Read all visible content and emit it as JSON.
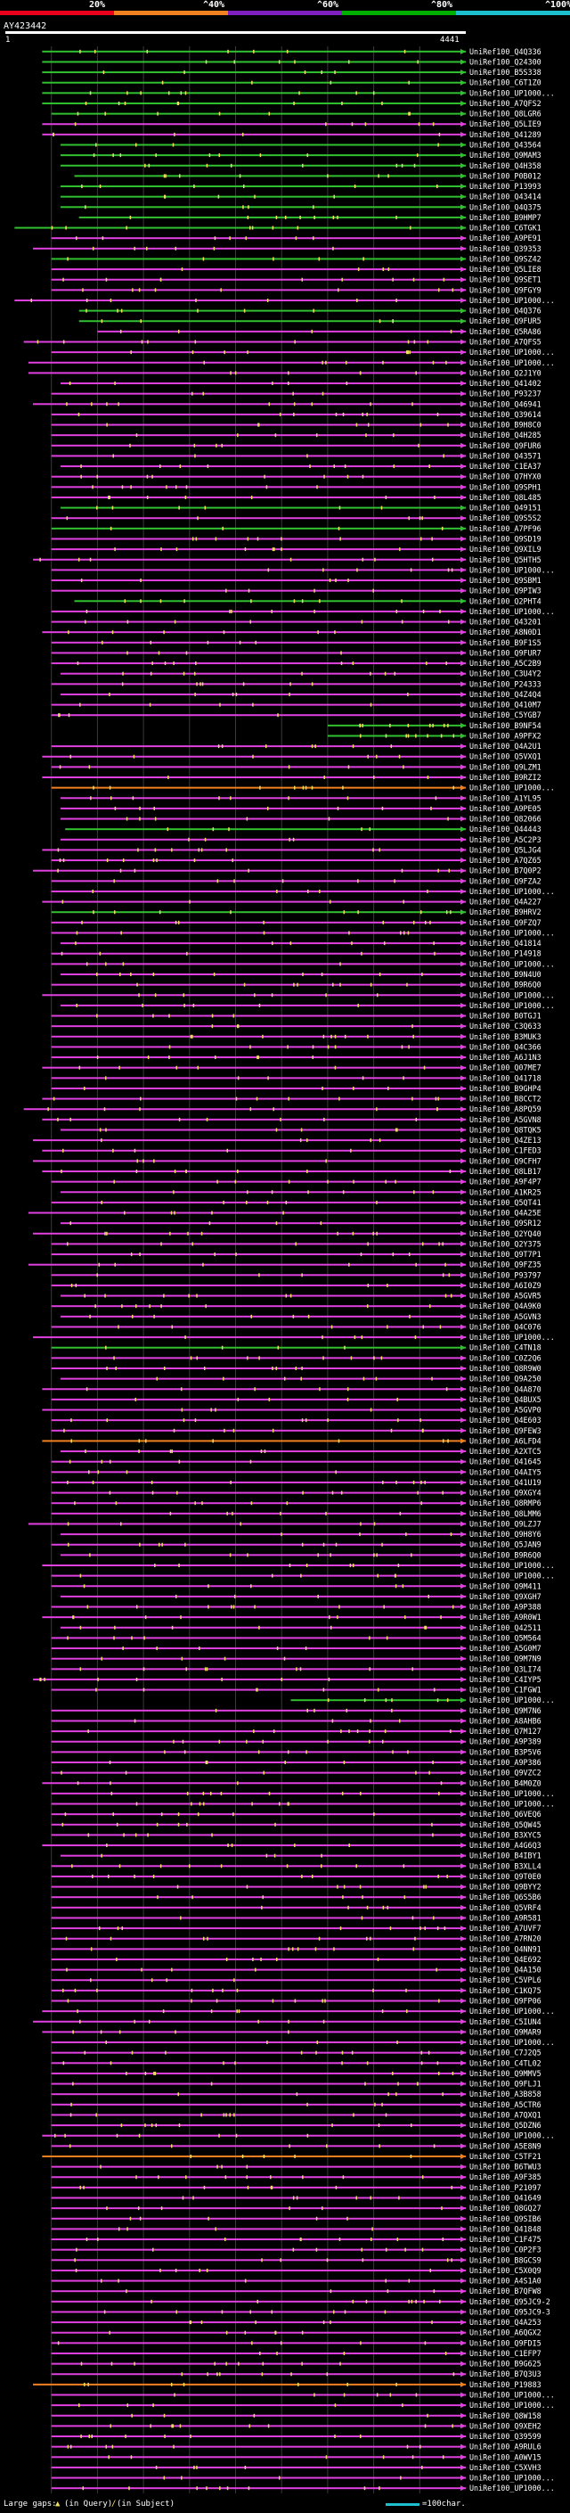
{
  "header": {
    "title": "AY423442",
    "query_start": "1",
    "query_end": "4441",
    "scale": [
      {
        "label": "20%",
        "color": "#e8001c"
      },
      {
        "label": "^40%",
        "color": "#f08020"
      },
      {
        "label": "^60%",
        "color": "#8020c0"
      },
      {
        "label": "^80%",
        "color": "#00b000"
      },
      {
        "label": "^100%",
        "color": "#1ec0d0"
      }
    ]
  },
  "colors": {
    "magenta": "#e040e0",
    "green": "#30c030",
    "orange": "#f08020",
    "red": "#e8001c",
    "yellow": "#f0e060",
    "grid": "#3a3a3a"
  },
  "hits": [
    {
      "label": "UniRef100_Q4Q336",
      "c": "g",
      "s": 0.08
    },
    {
      "label": "UniRef100_Q24300",
      "c": "g",
      "s": 0.08
    },
    {
      "label": "UniRef100_B5S338",
      "c": "g",
      "s": 0.08
    },
    {
      "label": "UniRef100_C6T1Z0",
      "c": "g",
      "s": 0.08
    },
    {
      "label": "UniRef100_UP1000...",
      "c": "g",
      "s": 0.08
    },
    {
      "label": "UniRef100_A7QFS2",
      "c": "g",
      "s": 0.08
    },
    {
      "label": "UniRef100_Q8LGR6",
      "c": "g",
      "s": 0.1
    },
    {
      "label": "UniRef100_Q5LIE9",
      "c": "m",
      "s": 0.08
    },
    {
      "label": "UniRef100_Q41289",
      "c": "m",
      "s": 0.08
    },
    {
      "label": "UniRef100_Q43564",
      "c": "g",
      "s": 0.12
    },
    {
      "label": "UniRef100_Q9MAM3",
      "c": "g",
      "s": 0.12
    },
    {
      "label": "UniRef100_Q4H358",
      "c": "g",
      "s": 0.12
    },
    {
      "label": "UniRef100_P0B012",
      "c": "g",
      "s": 0.15
    },
    {
      "label": "UniRef100_P13993",
      "c": "g",
      "s": 0.12
    },
    {
      "label": "UniRef100_Q43414",
      "c": "g",
      "s": 0.12
    },
    {
      "label": "UniRef100_Q4Q375",
      "c": "g",
      "s": 0.12
    },
    {
      "label": "UniRef100_B9HMP7",
      "c": "g",
      "s": 0.16
    },
    {
      "label": "UniRef100_C6TGK1",
      "c": "g",
      "s": 0.02
    },
    {
      "label": "UniRef100_A9PE91",
      "c": "m",
      "s": 0.1
    },
    {
      "label": "UniRef100_Q39353",
      "c": "m",
      "s": 0.06
    },
    {
      "label": "UniRef100_Q9SZ42",
      "c": "g",
      "s": 0.1
    },
    {
      "label": "UniRef100_Q5LIE8",
      "c": "m",
      "s": 0.1
    },
    {
      "label": "UniRef100_Q9SET1",
      "c": "m",
      "s": 0.1
    },
    {
      "label": "UniRef100_Q9FGY9",
      "c": "m",
      "s": 0.1
    },
    {
      "label": "UniRef100_UP1000...",
      "c": "m",
      "s": 0.02
    },
    {
      "label": "UniRef100_Q4Q376",
      "c": "g",
      "s": 0.16
    },
    {
      "label": "UniRef100_Q9FUR5",
      "c": "g",
      "s": 0.16
    },
    {
      "label": "UniRef100_Q5RA86",
      "c": "m",
      "s": 0.2
    },
    {
      "label": "UniRef100_A7QFS5",
      "c": "m",
      "s": 0.04
    },
    {
      "label": "UniRef100_UP1000...",
      "c": "m",
      "s": 0.1
    },
    {
      "label": "UniRef100_UP1000...",
      "c": "m",
      "s": 0.05
    },
    {
      "label": "UniRef100_Q2J1Y0",
      "c": "m",
      "s": 0.05
    },
    {
      "label": "UniRef100_Q41402",
      "c": "m",
      "s": 0.12
    },
    {
      "label": "UniRef100_P93237",
      "c": "m",
      "s": 0.1
    },
    {
      "label": "UniRef100_Q46941",
      "c": "m",
      "s": 0.06
    },
    {
      "label": "UniRef100_Q39614",
      "c": "m",
      "s": 0.1
    },
    {
      "label": "UniRef100_B9H8C0",
      "c": "m",
      "s": 0.1
    },
    {
      "label": "UniRef100_Q4H285",
      "c": "m",
      "s": 0.1
    },
    {
      "label": "UniRef100_Q9FUR6",
      "c": "m",
      "s": 0.1
    },
    {
      "label": "UniRef100_Q43571",
      "c": "m",
      "s": 0.1
    },
    {
      "label": "UniRef100_C1EA37",
      "c": "m",
      "s": 0.12
    },
    {
      "label": "UniRef100_Q7HYX0",
      "c": "m",
      "s": 0.1
    },
    {
      "label": "UniRef100_Q9SPH1",
      "c": "m",
      "s": 0.1
    },
    {
      "label": "UniRef100_Q8L485",
      "c": "m",
      "s": 0.1
    },
    {
      "label": "UniRef100_Q49151",
      "c": "g",
      "s": 0.12
    },
    {
      "label": "UniRef100_Q9S5S2",
      "c": "m",
      "s": 0.1
    },
    {
      "label": "UniRef100_A7PF96",
      "c": "g",
      "s": 0.1
    },
    {
      "label": "UniRef100_Q9SD19",
      "c": "m",
      "s": 0.1
    },
    {
      "label": "UniRef100_Q9XIL9",
      "c": "m",
      "s": 0.1
    },
    {
      "label": "UniRef100_Q5HTH5",
      "c": "m",
      "s": 0.06
    },
    {
      "label": "UniRef100_UP1000...",
      "c": "m",
      "s": 0.1
    },
    {
      "label": "UniRef100_Q9SBM1",
      "c": "m",
      "s": 0.1
    },
    {
      "label": "UniRef100_Q9PIW3",
      "c": "m",
      "s": 0.1
    },
    {
      "label": "UniRef100_Q2PHT4",
      "c": "g",
      "s": 0.15
    },
    {
      "label": "UniRef100_UP1000...",
      "c": "m",
      "s": 0.1
    },
    {
      "label": "UniRef100_Q43201",
      "c": "m",
      "s": 0.1
    },
    {
      "label": "UniRef100_A8N0D1",
      "c": "m",
      "s": 0.08
    },
    {
      "label": "UniRef100_B9F1S5",
      "c": "m",
      "s": 0.1
    },
    {
      "label": "UniRef100_Q9FUR7",
      "c": "m",
      "s": 0.1
    },
    {
      "label": "UniRef100_A5C2B9",
      "c": "m",
      "s": 0.1
    },
    {
      "label": "UniRef100_C3U4Y2",
      "c": "m",
      "s": 0.12
    },
    {
      "label": "UniRef100_P24333",
      "c": "m",
      "s": 0.1
    },
    {
      "label": "UniRef100_Q4Z4Q4",
      "c": "m",
      "s": 0.12
    },
    {
      "label": "UniRef100_Q410M7",
      "c": "m",
      "s": 0.1
    },
    {
      "label": "UniRef100_C5YGB7",
      "c": "m",
      "s": 0.1
    },
    {
      "label": "UniRef100_B9NF54",
      "c": "g",
      "s": 0.7
    },
    {
      "label": "UniRef100_A9PFX2",
      "c": "g",
      "s": 0.7
    },
    {
      "label": "UniRef100_Q4A2U1",
      "c": "m",
      "s": 0.1
    },
    {
      "label": "UniRef100_Q5VXQ1",
      "c": "m",
      "s": 0.08
    },
    {
      "label": "UniRef100_Q9LZM1",
      "c": "m",
      "s": 0.1
    },
    {
      "label": "UniRef100_B9RZI2",
      "c": "m",
      "s": 0.08
    },
    {
      "label": "UniRef100_UP1000...",
      "c": "o",
      "s": 0.1
    },
    {
      "label": "UniRef100_A1YL95",
      "c": "m",
      "s": 0.12
    },
    {
      "label": "UniRef100_A9PE05",
      "c": "m",
      "s": 0.12
    },
    {
      "label": "UniRef100_Q82066",
      "c": "m",
      "s": 0.12
    },
    {
      "label": "UniRef100_Q44443",
      "c": "g",
      "s": 0.13
    },
    {
      "label": "UniRef100_A5C2P3",
      "c": "m",
      "s": 0.12
    },
    {
      "label": "UniRef100_Q5LJG4",
      "c": "m",
      "s": 0.08
    },
    {
      "label": "UniRef100_A7QZ65",
      "c": "m",
      "s": 0.1
    },
    {
      "label": "UniRef100_B7Q0P2",
      "c": "m",
      "s": 0.06
    },
    {
      "label": "UniRef100_Q9FZA2",
      "c": "m",
      "s": 0.1
    },
    {
      "label": "UniRef100_UP1000...",
      "c": "m",
      "s": 0.1
    },
    {
      "label": "UniRef100_Q4A227",
      "c": "m",
      "s": 0.08
    },
    {
      "label": "UniRef100_B9HRV2",
      "c": "g",
      "s": 0.1
    },
    {
      "label": "UniRef100_Q9FZQ7",
      "c": "m",
      "s": 0.1
    },
    {
      "label": "UniRef100_UP1000...",
      "c": "m",
      "s": 0.1
    },
    {
      "label": "UniRef100_Q41814",
      "c": "m",
      "s": 0.12
    },
    {
      "label": "UniRef100_P14918",
      "c": "m",
      "s": 0.1
    },
    {
      "label": "UniRef100_UP1000...",
      "c": "m",
      "s": 0.1
    },
    {
      "label": "UniRef100_B9N4U0",
      "c": "m",
      "s": 0.12
    },
    {
      "label": "UniRef100_B9R6Q0",
      "c": "m",
      "s": 0.1
    },
    {
      "label": "UniRef100_UP1000...",
      "c": "m",
      "s": 0.08
    },
    {
      "label": "UniRef100_UP1000...",
      "c": "m",
      "s": 0.12
    },
    {
      "label": "UniRef100_B0TGJ1",
      "c": "m",
      "s": 0.1
    },
    {
      "label": "UniRef100_C3Q633",
      "c": "m",
      "s": 0.1
    },
    {
      "label": "UniRef100_B3MUK3",
      "c": "m",
      "s": 0.1
    },
    {
      "label": "UniRef100_Q4C366",
      "c": "m",
      "s": 0.1
    },
    {
      "label": "UniRef100_A6J1N3",
      "c": "m",
      "s": 0.1
    },
    {
      "label": "UniRef100_Q07ME7",
      "c": "m",
      "s": 0.08
    },
    {
      "label": "UniRef100_Q41718",
      "c": "m",
      "s": 0.1
    },
    {
      "label": "UniRef100_B9GHP4",
      "c": "m",
      "s": 0.1
    },
    {
      "label": "UniRef100_B8CCT2",
      "c": "m",
      "s": 0.08
    },
    {
      "label": "UniRef100_A8PQ59",
      "c": "m",
      "s": 0.04
    },
    {
      "label": "UniRef100_A5GVN8",
      "c": "m",
      "s": 0.08
    },
    {
      "label": "UniRef100_Q8TQK5",
      "c": "m",
      "s": 0.12
    },
    {
      "label": "UniRef100_Q4ZE13",
      "c": "m",
      "s": 0.06
    },
    {
      "label": "UniRef100_C1FED3",
      "c": "m",
      "s": 0.08
    },
    {
      "label": "UniRef100_Q9CFH7",
      "c": "m",
      "s": 0.06
    },
    {
      "label": "UniRef100_Q8LB17",
      "c": "m",
      "s": 0.08
    },
    {
      "label": "UniRef100_A9F4P7",
      "c": "m",
      "s": 0.1
    },
    {
      "label": "UniRef100_A1KR25",
      "c": "m",
      "s": 0.12
    },
    {
      "label": "UniRef100_Q5QT41",
      "c": "m",
      "s": 0.1
    },
    {
      "label": "UniRef100_Q4A25E",
      "c": "m",
      "s": 0.05
    },
    {
      "label": "UniRef100_Q9SR12",
      "c": "m",
      "s": 0.12
    },
    {
      "label": "UniRef100_Q2YQ40",
      "c": "m",
      "s": 0.06
    },
    {
      "label": "UniRef100_Q2Y375",
      "c": "m",
      "s": 0.1
    },
    {
      "label": "UniRef100_Q9T7P1",
      "c": "m",
      "s": 0.1
    },
    {
      "label": "UniRef100_Q9FZ35",
      "c": "m",
      "s": 0.05
    },
    {
      "label": "UniRef100_P93797",
      "c": "m",
      "s": 0.1
    },
    {
      "label": "UniRef100_A6I0Z9",
      "c": "m",
      "s": 0.1
    },
    {
      "label": "UniRef100_A5GVR5",
      "c": "m",
      "s": 0.12
    },
    {
      "label": "UniRef100_Q4A9K0",
      "c": "m",
      "s": 0.1
    },
    {
      "label": "UniRef100_A5GVN3",
      "c": "m",
      "s": 0.12
    },
    {
      "label": "UniRef100_Q4C076",
      "c": "m",
      "s": 0.1
    },
    {
      "label": "UniRef100_UP1000...",
      "c": "m",
      "s": 0.06
    },
    {
      "label": "UniRef100_C4TN18",
      "c": "g",
      "s": 0.1
    },
    {
      "label": "UniRef100_C0Z2Q6",
      "c": "m",
      "s": 0.1
    },
    {
      "label": "UniRef100_Q8R9W0",
      "c": "m",
      "s": 0.1
    },
    {
      "label": "UniRef100_Q9A250",
      "c": "m",
      "s": 0.12
    },
    {
      "label": "UniRef100_Q4A870",
      "c": "m",
      "s": 0.08
    },
    {
      "label": "UniRef100_Q4BUX5",
      "c": "m",
      "s": 0.1
    },
    {
      "label": "UniRef100_A5GVP0",
      "c": "m",
      "s": 0.08
    },
    {
      "label": "UniRef100_Q4E603",
      "c": "m",
      "s": 0.1
    },
    {
      "label": "UniRef100_Q9FEW3",
      "c": "m",
      "s": 0.1
    },
    {
      "label": "UniRef100_A6LFD4",
      "c": "o",
      "s": 0.08
    },
    {
      "label": "UniRef100_A2XTC5",
      "c": "m",
      "s": 0.12
    },
    {
      "label": "UniRef100_Q41645",
      "c": "m",
      "s": 0.1
    },
    {
      "label": "UniRef100_Q4AIY5",
      "c": "m",
      "s": 0.1
    },
    {
      "label": "UniRef100_Q41U19",
      "c": "m",
      "s": 0.1
    },
    {
      "label": "UniRef100_Q9XGY4",
      "c": "m",
      "s": 0.1
    },
    {
      "label": "UniRef100_Q8RMP6",
      "c": "m",
      "s": 0.1
    },
    {
      "label": "UniRef100_Q8LMM6",
      "c": "m",
      "s": 0.1
    },
    {
      "label": "UniRef100_Q9LZJ7",
      "c": "m",
      "s": 0.05
    },
    {
      "label": "UniRef100_Q9H8Y6",
      "c": "m",
      "s": 0.12
    },
    {
      "label": "UniRef100_Q5JAN9",
      "c": "m",
      "s": 0.1
    },
    {
      "label": "UniRef100_B9R6Q0",
      "c": "m",
      "s": 0.12
    },
    {
      "label": "UniRef100_UP1000...",
      "c": "m",
      "s": 0.08
    },
    {
      "label": "UniRef100_UP1000...",
      "c": "m",
      "s": 0.1
    },
    {
      "label": "UniRef100_Q9M411",
      "c": "m",
      "s": 0.1
    },
    {
      "label": "UniRef100_Q9XGH7",
      "c": "m",
      "s": 0.12
    },
    {
      "label": "UniRef100_A9P388",
      "c": "m",
      "s": 0.1
    },
    {
      "label": "UniRef100_A9R0W1",
      "c": "m",
      "s": 0.08
    },
    {
      "label": "UniRef100_Q42511",
      "c": "m",
      "s": 0.12
    },
    {
      "label": "UniRef100_Q5M564",
      "c": "m",
      "s": 0.1
    },
    {
      "label": "UniRef100_A5G0M7",
      "c": "m",
      "s": 0.1
    },
    {
      "label": "UniRef100_Q9M7N9",
      "c": "m",
      "s": 0.1
    },
    {
      "label": "UniRef100_Q3LI74",
      "c": "m",
      "s": 0.1
    },
    {
      "label": "UniRef100_C4IYP5",
      "c": "m",
      "s": 0.06
    },
    {
      "label": "UniRef100_C1FGW1",
      "c": "m",
      "s": 0.1
    },
    {
      "label": "UniRef100_UP1000...",
      "c": "g",
      "s": 0.62
    },
    {
      "label": "UniRef100_Q9M7N6",
      "c": "m",
      "s": 0.1
    },
    {
      "label": "UniRef100_A8AHB6",
      "c": "m",
      "s": 0.1
    },
    {
      "label": "UniRef100_Q7M127",
      "c": "m",
      "s": 0.1
    },
    {
      "label": "UniRef100_A9P389",
      "c": "m",
      "s": 0.1
    },
    {
      "label": "UniRef100_B3P5V6",
      "c": "m",
      "s": 0.1
    },
    {
      "label": "UniRef100_A9P386",
      "c": "m",
      "s": 0.1
    },
    {
      "label": "UniRef100_Q9VZC2",
      "c": "m",
      "s": 0.1
    },
    {
      "label": "UniRef100_B4M0Z0",
      "c": "m",
      "s": 0.08
    },
    {
      "label": "UniRef100_UP1000...",
      "c": "m",
      "s": 0.1
    },
    {
      "label": "UniRef100_UP1000...",
      "c": "m",
      "s": 0.1
    },
    {
      "label": "UniRef100_Q6VEQ6",
      "c": "m",
      "s": 0.1
    },
    {
      "label": "UniRef100_Q5QW45",
      "c": "m",
      "s": 0.1
    },
    {
      "label": "UniRef100_B3XYC5",
      "c": "m",
      "s": 0.1
    },
    {
      "label": "UniRef100_A4G6Q3",
      "c": "m",
      "s": 0.08
    },
    {
      "label": "UniRef100_B4IBY1",
      "c": "m",
      "s": 0.12
    },
    {
      "label": "UniRef100_B3XLL4",
      "c": "m",
      "s": 0.1
    },
    {
      "label": "UniRef100_Q9T0E0",
      "c": "m",
      "s": 0.1
    },
    {
      "label": "UniRef100_Q9BYY2",
      "c": "m",
      "s": 0.1
    },
    {
      "label": "UniRef100_Q6S5B6",
      "c": "m",
      "s": 0.1
    },
    {
      "label": "UniRef100_Q5VRF4",
      "c": "m",
      "s": 0.1
    },
    {
      "label": "UniRef100_A9R581",
      "c": "m",
      "s": 0.1
    },
    {
      "label": "UniRef100_A7UVF7",
      "c": "m",
      "s": 0.1
    },
    {
      "label": "UniRef100_A7RN20",
      "c": "m",
      "s": 0.1
    },
    {
      "label": "UniRef100_Q4NN91",
      "c": "m",
      "s": 0.1
    },
    {
      "label": "UniRef100_Q4E692",
      "c": "m",
      "s": 0.1
    },
    {
      "label": "UniRef100_Q4A150",
      "c": "m",
      "s": 0.1
    },
    {
      "label": "UniRef100_C5VPL6",
      "c": "m",
      "s": 0.1
    },
    {
      "label": "UniRef100_C1KQ75",
      "c": "m",
      "s": 0.1
    },
    {
      "label": "UniRef100_Q9FP06",
      "c": "m",
      "s": 0.1
    },
    {
      "label": "UniRef100_UP1000...",
      "c": "m",
      "s": 0.08
    },
    {
      "label": "UniRef100_C5IUN4",
      "c": "m",
      "s": 0.06
    },
    {
      "label": "UniRef100_Q9MAR9",
      "c": "m",
      "s": 0.08
    },
    {
      "label": "UniRef100_UP1000...",
      "c": "m",
      "s": 0.1
    },
    {
      "label": "UniRef100_C7J2Q5",
      "c": "m",
      "s": 0.1
    },
    {
      "label": "UniRef100_C4TL02",
      "c": "m",
      "s": 0.1
    },
    {
      "label": "UniRef100_Q9MMV5",
      "c": "m",
      "s": 0.1
    },
    {
      "label": "UniRef100_Q9FLJ1",
      "c": "m",
      "s": 0.1
    },
    {
      "label": "UniRef100_A3B858",
      "c": "m",
      "s": 0.1
    },
    {
      "label": "UniRef100_A5CTR6",
      "c": "m",
      "s": 0.1
    },
    {
      "label": "UniRef100_A7QXQ1",
      "c": "m",
      "s": 0.1
    },
    {
      "label": "UniRef100_Q5DZN6",
      "c": "m",
      "s": 0.1
    },
    {
      "label": "UniRef100_UP1000...",
      "c": "m",
      "s": 0.08
    },
    {
      "label": "UniRef100_A5E8N9",
      "c": "m",
      "s": 0.1
    },
    {
      "label": "UniRef100_C5TF21",
      "c": "o",
      "s": 0.08
    },
    {
      "label": "UniRef100_B6TWU3",
      "c": "m",
      "s": 0.1
    },
    {
      "label": "UniRef100_A9F385",
      "c": "m",
      "s": 0.1
    },
    {
      "label": "UniRef100_P21097",
      "c": "m",
      "s": 0.1
    },
    {
      "label": "UniRef100_Q41649",
      "c": "m",
      "s": 0.1
    },
    {
      "label": "UniRef100_Q8GQ27",
      "c": "m",
      "s": 0.1
    },
    {
      "label": "UniRef100_Q9SIB6",
      "c": "m",
      "s": 0.1
    },
    {
      "label": "UniRef100_Q41848",
      "c": "m",
      "s": 0.1
    },
    {
      "label": "UniRef100_C1F475",
      "c": "m",
      "s": 0.1
    },
    {
      "label": "UniRef100_C0P2F3",
      "c": "m",
      "s": 0.1
    },
    {
      "label": "UniRef100_B8GCS9",
      "c": "m",
      "s": 0.1
    },
    {
      "label": "UniRef100_C5X0Q9",
      "c": "m",
      "s": 0.1
    },
    {
      "label": "UniRef100_A4S1A0",
      "c": "m",
      "s": 0.1
    },
    {
      "label": "UniRef100_B7QFW8",
      "c": "m",
      "s": 0.1
    },
    {
      "label": "UniRef100_Q95JC9-2",
      "c": "m",
      "s": 0.1
    },
    {
      "label": "UniRef100_Q95JC9-3",
      "c": "m",
      "s": 0.1
    },
    {
      "label": "UniRef100_Q4A253",
      "c": "m",
      "s": 0.1
    },
    {
      "label": "UniRef100_A6QGX2",
      "c": "m",
      "s": 0.1
    },
    {
      "label": "UniRef100_Q9FDI5",
      "c": "m",
      "s": 0.1
    },
    {
      "label": "UniRef100_C1EFP7",
      "c": "m",
      "s": 0.1
    },
    {
      "label": "UniRef100_B9G625",
      "c": "m",
      "s": 0.1
    },
    {
      "label": "UniRef100_B7Q3U3",
      "c": "m",
      "s": 0.1
    },
    {
      "label": "UniRef100_P19883",
      "c": "o",
      "s": 0.06
    },
    {
      "label": "UniRef100_UP1000...",
      "c": "m",
      "s": 0.1
    },
    {
      "label": "UniRef100_UP1000...",
      "c": "m",
      "s": 0.1
    },
    {
      "label": "UniRef100_Q8W158",
      "c": "m",
      "s": 0.1
    },
    {
      "label": "UniRef100_Q9XEH2",
      "c": "m",
      "s": 0.1
    },
    {
      "label": "UniRef100_Q39599",
      "c": "m",
      "s": 0.1
    },
    {
      "label": "UniRef100_A9RUL6",
      "c": "m",
      "s": 0.1
    },
    {
      "label": "UniRef100_A0WV15",
      "c": "m",
      "s": 0.1
    },
    {
      "label": "UniRef100_C5XVH3",
      "c": "m",
      "s": 0.1
    },
    {
      "label": "UniRef100_UP1000...",
      "c": "m",
      "s": 0.1
    },
    {
      "label": "UniRef100_UP1000...",
      "c": "m",
      "s": 0.1
    }
  ],
  "footer": {
    "gaps_label": "Large gaps:",
    "query_gap": "(in Query)",
    "subject_gap": "(in Subject)",
    "scale_label": "=100char."
  }
}
